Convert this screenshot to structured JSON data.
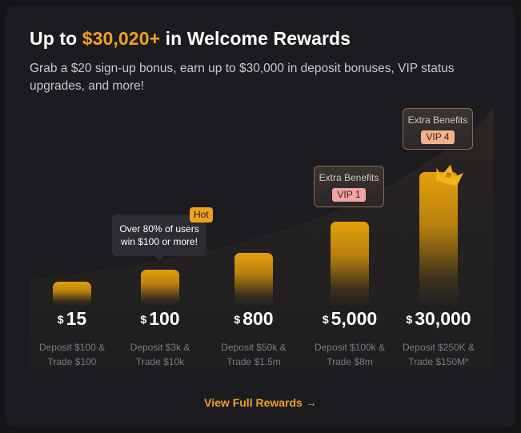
{
  "header": {
    "title_prefix": "Up to ",
    "title_amount": "$30,020+",
    "title_suffix": " in Welcome Rewards",
    "subtitle": "Grab a $20 sign-up bonus, earn up to $30,000 in deposit bonuses, VIP status upgrades, and more!"
  },
  "tiers": [
    {
      "currency": "$",
      "amount": "15",
      "req_line1": "Deposit $100 &",
      "req_line2": "Trade $100"
    },
    {
      "currency": "$",
      "amount": "100",
      "req_line1": "Deposit $3k &",
      "req_line2": "Trade $10k"
    },
    {
      "currency": "$",
      "amount": "800",
      "req_line1": "Deposit $50k &",
      "req_line2": "Trade $1.5m"
    },
    {
      "currency": "$",
      "amount": "5,000",
      "req_line1": "Deposit $100k &",
      "req_line2": "Trade $8m"
    },
    {
      "currency": "$",
      "amount": "30,000",
      "req_line1": "Deposit $250K &",
      "req_line2": "Trade $150M*"
    }
  ],
  "tooltip": {
    "line1": "Over 80% of users",
    "line2": "win $100 or more!",
    "badge": "Hot"
  },
  "benefits": [
    {
      "label": "Extra Benefits",
      "vip": "VIP 1"
    },
    {
      "label": "Extra Benefits",
      "vip": "VIP 4"
    }
  ],
  "cta": {
    "label": "View Full Rewards",
    "arrow": "→"
  },
  "colors": {
    "accent": "#f0a21f",
    "background": "#1c1c20",
    "vip1": "#f2a3a3",
    "vip4": "#f2b18c"
  }
}
